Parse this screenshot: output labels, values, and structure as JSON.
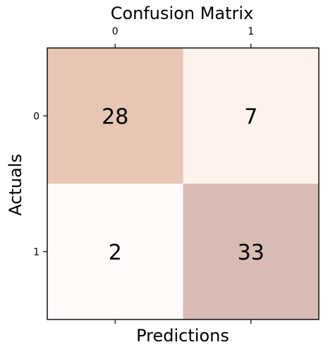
{
  "chart_data": {
    "type": "heatmap",
    "title": "Confusion Matrix",
    "xlabel": "Predictions",
    "ylabel": "Actuals",
    "x_ticks": [
      "0",
      "1"
    ],
    "y_ticks": [
      "0",
      "1"
    ],
    "values": [
      [
        28,
        7
      ],
      [
        2,
        33
      ]
    ],
    "colormap": {
      "low": "#fff8f4",
      "high": "#d8bab2"
    },
    "cell_colors": [
      [
        "#e7c6b5",
        "#fdf3ec"
      ],
      [
        "#fffbf9",
        "#d8bcb3"
      ]
    ],
    "x_tick_position": "top",
    "grid": false
  }
}
